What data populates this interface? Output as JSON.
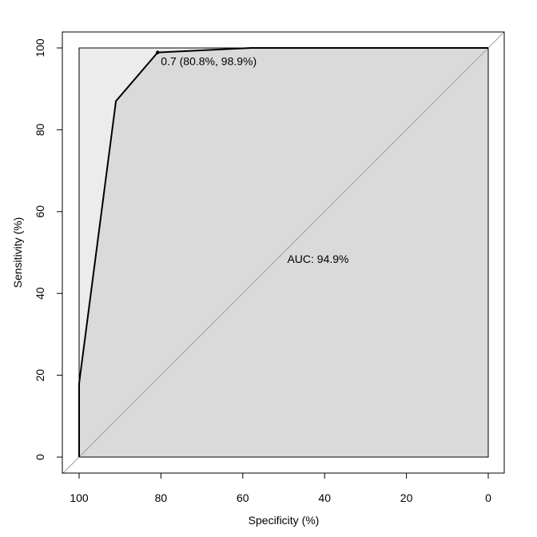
{
  "chart_data": {
    "type": "line",
    "title": "",
    "xlabel": "Specificity (%)",
    "ylabel": "Sensitivity (%)",
    "xlim": [
      100,
      0
    ],
    "ylim": [
      0,
      100
    ],
    "x_reversed": true,
    "grid": false,
    "x_ticks": [
      {
        "value": 100,
        "label": "100"
      },
      {
        "value": 80,
        "label": "80"
      },
      {
        "value": 60,
        "label": "60"
      },
      {
        "value": 40,
        "label": "40"
      },
      {
        "value": 20,
        "label": "20"
      },
      {
        "value": 0,
        "label": "0"
      }
    ],
    "y_ticks": [
      {
        "value": 0,
        "label": "0"
      },
      {
        "value": 20,
        "label": "20"
      },
      {
        "value": 40,
        "label": "40"
      },
      {
        "value": 60,
        "label": "60"
      },
      {
        "value": 80,
        "label": "80"
      },
      {
        "value": 100,
        "label": "100"
      }
    ],
    "roc_curve": {
      "specificity": [
        100,
        100,
        91,
        80.8,
        58,
        0
      ],
      "sensitivity": [
        0,
        18,
        87,
        98.9,
        100,
        100
      ]
    },
    "threshold_point": {
      "specificity": 80.8,
      "sensitivity": 98.9,
      "label": "0.7 (80.8%, 98.9%)"
    },
    "auc_label": "AUC: 94.9%",
    "colors": {
      "auc_fill": "#dadada",
      "max_auc_fill": "#ececec",
      "curve": "#000000",
      "diagonal": "#a0a0a0"
    }
  }
}
